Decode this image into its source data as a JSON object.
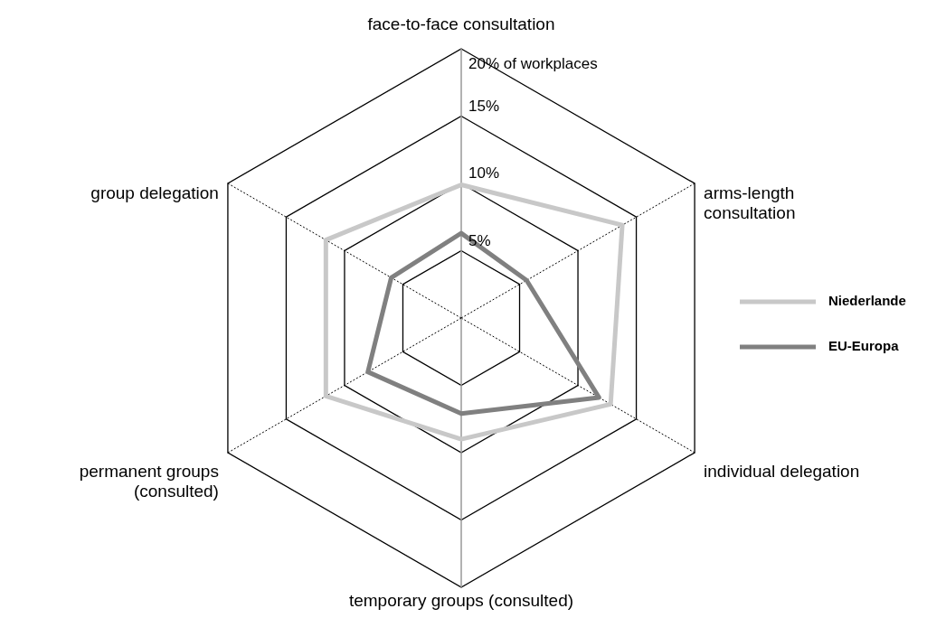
{
  "chart_data": {
    "type": "radar",
    "categories": [
      "face-to-face consultation",
      "arms-length\nconsultation",
      "individual delegation",
      "temporary groups (consulted)",
      "permanent groups\n(consulted)",
      "group delegation"
    ],
    "series": [
      {
        "name": "Niederlande",
        "color": "#c8c8c8",
        "values": [
          9.9,
          13.8,
          12.8,
          9.0,
          11.6,
          11.6
        ]
      },
      {
        "name": "EU-Europa",
        "color": "#808080",
        "values": [
          6.3,
          5.6,
          11.8,
          7.1,
          8.0,
          6.0
        ]
      }
    ],
    "ylim": [
      0,
      20
    ],
    "yticks": [
      {
        "value": 5,
        "label": "5%"
      },
      {
        "value": 10,
        "label": "10%"
      },
      {
        "value": 15,
        "label": "15%"
      },
      {
        "value": 20,
        "label": "20% of workplaces"
      }
    ],
    "grid": true,
    "legend": "right"
  }
}
